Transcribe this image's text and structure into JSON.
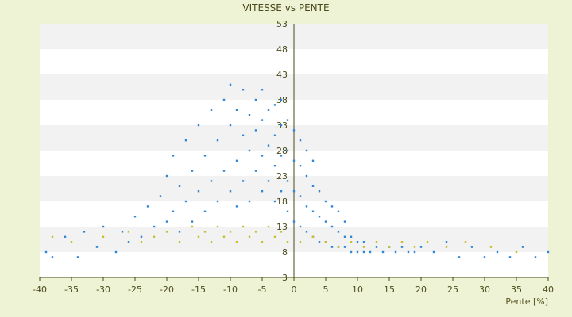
{
  "chart_data": {
    "type": "scatter",
    "title": "VITESSE vs PENTE",
    "xlabel": "Pente [%]",
    "ylabel": "",
    "xlim": [
      -40,
      40
    ],
    "ylim": [
      3,
      53
    ],
    "x_ticks": [
      "-40",
      "-35",
      "-30",
      "-25",
      "-20",
      "-15",
      "-10",
      "-5",
      "0",
      "5",
      "10",
      "15",
      "20",
      "25",
      "30",
      "35",
      "40"
    ],
    "y_ticks": [
      "3",
      "8",
      "13",
      "18",
      "23",
      "28",
      "33",
      "38",
      "43",
      "48",
      "53"
    ],
    "grid": "horizontal bands",
    "legend": "none",
    "series": [
      {
        "color": "#2f87d6",
        "points": [
          [
            -39,
            8
          ],
          [
            -38,
            7
          ],
          [
            -36,
            11
          ],
          [
            -34,
            7
          ],
          [
            -33,
            12
          ],
          [
            -31,
            9
          ],
          [
            -30,
            13
          ],
          [
            -28,
            8
          ],
          [
            -27,
            12
          ],
          [
            -26,
            10
          ],
          [
            -25,
            15
          ],
          [
            -24,
            11
          ],
          [
            -23,
            17
          ],
          [
            -22,
            13
          ],
          [
            -21,
            19
          ],
          [
            -20,
            14
          ],
          [
            -20,
            23
          ],
          [
            -19,
            16
          ],
          [
            -19,
            27
          ],
          [
            -18,
            12
          ],
          [
            -18,
            21
          ],
          [
            -17,
            18
          ],
          [
            -17,
            30
          ],
          [
            -16,
            14
          ],
          [
            -16,
            24
          ],
          [
            -15,
            20
          ],
          [
            -15,
            33
          ],
          [
            -14,
            16
          ],
          [
            -14,
            27
          ],
          [
            -13,
            22
          ],
          [
            -13,
            36
          ],
          [
            -12,
            18
          ],
          [
            -12,
            30
          ],
          [
            -11,
            24
          ],
          [
            -11,
            38
          ],
          [
            -10,
            20
          ],
          [
            -10,
            33
          ],
          [
            -10,
            41
          ],
          [
            -9,
            17
          ],
          [
            -9,
            26
          ],
          [
            -9,
            36
          ],
          [
            -8,
            22
          ],
          [
            -8,
            31
          ],
          [
            -8,
            40
          ],
          [
            -7,
            18
          ],
          [
            -7,
            28
          ],
          [
            -7,
            35
          ],
          [
            -6,
            24
          ],
          [
            -6,
            32
          ],
          [
            -6,
            38
          ],
          [
            -5,
            20
          ],
          [
            -5,
            27
          ],
          [
            -5,
            34
          ],
          [
            -5,
            40
          ],
          [
            -4,
            22
          ],
          [
            -4,
            29
          ],
          [
            -4,
            36
          ],
          [
            -3,
            18
          ],
          [
            -3,
            25
          ],
          [
            -3,
            31
          ],
          [
            -3,
            37
          ],
          [
            -2,
            20
          ],
          [
            -2,
            27
          ],
          [
            -2,
            33
          ],
          [
            -2,
            38
          ],
          [
            -1,
            16
          ],
          [
            -1,
            22
          ],
          [
            -1,
            28
          ],
          [
            -1,
            34
          ],
          [
            0,
            14
          ],
          [
            0,
            20
          ],
          [
            0,
            26
          ],
          [
            0,
            32
          ],
          [
            1,
            13
          ],
          [
            1,
            19
          ],
          [
            1,
            25
          ],
          [
            1,
            30
          ],
          [
            2,
            12
          ],
          [
            2,
            17
          ],
          [
            2,
            23
          ],
          [
            2,
            28
          ],
          [
            3,
            11
          ],
          [
            3,
            16
          ],
          [
            3,
            21
          ],
          [
            3,
            26
          ],
          [
            4,
            10
          ],
          [
            4,
            15
          ],
          [
            4,
            20
          ],
          [
            5,
            10
          ],
          [
            5,
            14
          ],
          [
            5,
            18
          ],
          [
            6,
            9
          ],
          [
            6,
            13
          ],
          [
            6,
            17
          ],
          [
            7,
            9
          ],
          [
            7,
            12
          ],
          [
            7,
            16
          ],
          [
            8,
            9
          ],
          [
            8,
            11
          ],
          [
            8,
            14
          ],
          [
            9,
            8
          ],
          [
            9,
            11
          ],
          [
            10,
            8
          ],
          [
            10,
            10
          ],
          [
            11,
            8
          ],
          [
            11,
            10
          ],
          [
            12,
            8
          ],
          [
            13,
            9
          ],
          [
            14,
            8
          ],
          [
            15,
            9
          ],
          [
            16,
            8
          ],
          [
            17,
            9
          ],
          [
            18,
            8
          ],
          [
            19,
            8
          ],
          [
            20,
            9
          ],
          [
            22,
            8
          ],
          [
            24,
            10
          ],
          [
            26,
            7
          ],
          [
            28,
            9
          ],
          [
            30,
            7
          ],
          [
            32,
            8
          ],
          [
            34,
            7
          ],
          [
            36,
            9
          ],
          [
            38,
            7
          ],
          [
            40,
            8
          ]
        ]
      },
      {
        "color": "#c8bf2a",
        "points": [
          [
            -38,
            11
          ],
          [
            -35,
            10
          ],
          [
            -30,
            11
          ],
          [
            -26,
            12
          ],
          [
            -24,
            10
          ],
          [
            -22,
            11
          ],
          [
            -20,
            12
          ],
          [
            -18,
            10
          ],
          [
            -16,
            13
          ],
          [
            -15,
            11
          ],
          [
            -14,
            12
          ],
          [
            -13,
            10
          ],
          [
            -12,
            13
          ],
          [
            -11,
            11
          ],
          [
            -10,
            12
          ],
          [
            -9,
            10
          ],
          [
            -8,
            13
          ],
          [
            -7,
            11
          ],
          [
            -6,
            12
          ],
          [
            -5,
            10
          ],
          [
            -4,
            13
          ],
          [
            -3,
            11
          ],
          [
            -2,
            12
          ],
          [
            -1,
            10
          ],
          [
            1,
            10
          ],
          [
            3,
            11
          ],
          [
            5,
            10
          ],
          [
            7,
            9
          ],
          [
            9,
            10
          ],
          [
            11,
            9
          ],
          [
            13,
            10
          ],
          [
            15,
            9
          ],
          [
            17,
            10
          ],
          [
            19,
            9
          ],
          [
            21,
            10
          ],
          [
            24,
            9
          ],
          [
            27,
            10
          ],
          [
            31,
            9
          ],
          [
            35,
            8
          ]
        ]
      }
    ]
  }
}
